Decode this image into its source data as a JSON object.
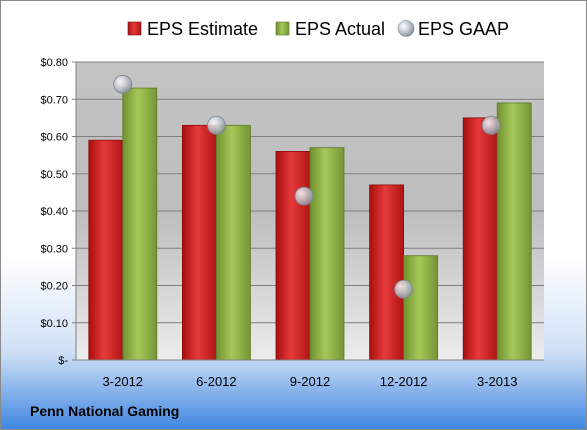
{
  "company": "Penn National Gaming",
  "colors": {
    "estimate": "#cc1f1f",
    "actual": "#8cb040",
    "gaap": "#b8bec8",
    "plot_bg_top": "#c4c4c4",
    "plot_bg_bottom": "#eaeaea",
    "page_bg_top": "#ffffff",
    "page_bg_bottom": "#3f86e0"
  },
  "chart_data": {
    "type": "bar",
    "title": "",
    "xlabel": "",
    "ylabel": "",
    "categories": [
      "3-2012",
      "6-2012",
      "9-2012",
      "12-2012",
      "3-2013"
    ],
    "series": [
      {
        "name": "EPS Estimate",
        "kind": "bar",
        "color": "#cc1f1f",
        "values": [
          0.59,
          0.63,
          0.56,
          0.47,
          0.65
        ]
      },
      {
        "name": "EPS Actual",
        "kind": "bar",
        "color": "#8cb040",
        "values": [
          0.73,
          0.63,
          0.57,
          0.28,
          0.69
        ]
      },
      {
        "name": "EPS GAAP",
        "kind": "marker",
        "color": "#b8bec8",
        "values": [
          0.74,
          0.63,
          0.44,
          0.19,
          0.63
        ]
      }
    ],
    "ylim": [
      0,
      0.8
    ],
    "yticks": [
      0,
      0.1,
      0.2,
      0.3,
      0.4,
      0.5,
      0.6,
      0.7,
      0.8
    ],
    "ytick_labels": [
      "$-",
      "$0.10",
      "$0.20",
      "$0.30",
      "$0.40",
      "$0.50",
      "$0.60",
      "$0.70",
      "$0.80"
    ],
    "grid": true,
    "legend_position": "top"
  }
}
